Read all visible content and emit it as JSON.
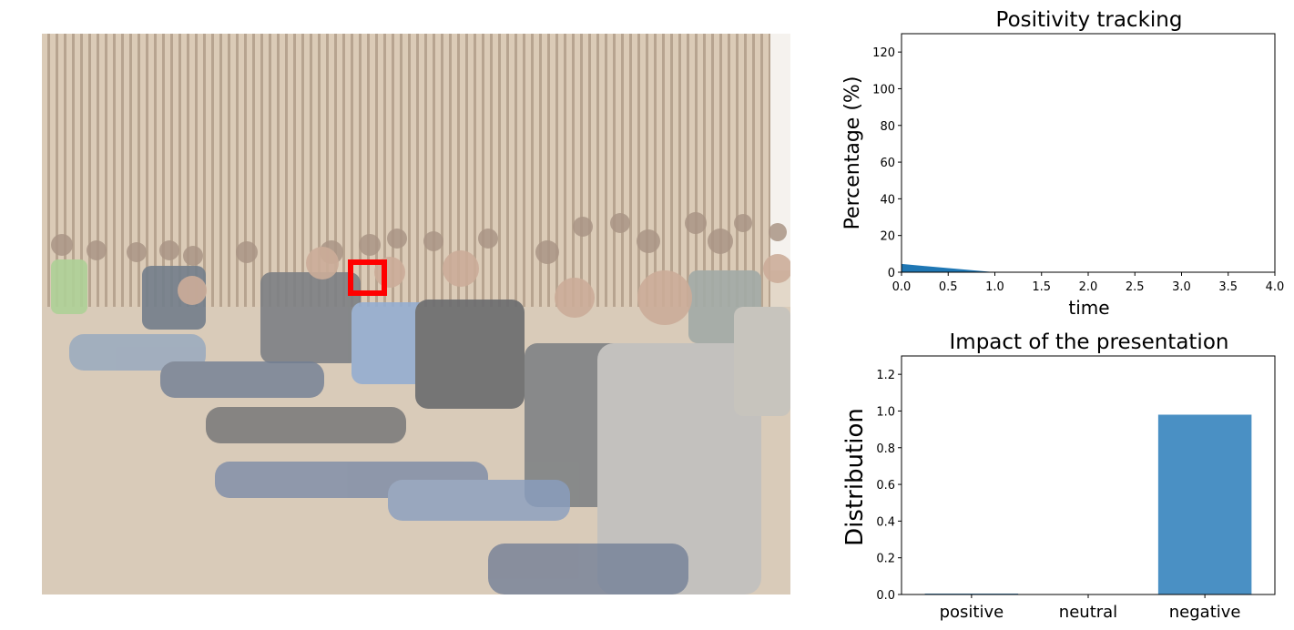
{
  "photo": {
    "description_icon": "audience-photo",
    "marker_color": "#ff0000"
  },
  "chart_data": [
    {
      "type": "area",
      "title": "Positivity tracking",
      "xlabel": "time",
      "ylabel": "Percentage (%)",
      "x": [
        0,
        1
      ],
      "y": [
        4.5,
        0
      ],
      "xlim": [
        0,
        4
      ],
      "ylim": [
        0,
        130
      ],
      "xticks": [
        "0.0",
        "0.5",
        "1.0",
        "1.5",
        "2.0",
        "2.5",
        "3.0",
        "3.5",
        "4.0"
      ],
      "yticks": [
        "0",
        "20",
        "40",
        "60",
        "80",
        "100",
        "120"
      ],
      "grid": false,
      "color": "#1f77b4"
    },
    {
      "type": "bar",
      "title": "Impact of the presentation",
      "xlabel": "",
      "ylabel": "Distribution",
      "categories": [
        "positive",
        "neutral",
        "negative"
      ],
      "values": [
        0.005,
        0.0,
        0.98
      ],
      "ylim": [
        0,
        1.3
      ],
      "yticks": [
        "0.0",
        "0.2",
        "0.4",
        "0.6",
        "0.8",
        "1.0",
        "1.2"
      ],
      "grid": false,
      "color": "#4a90c4"
    }
  ]
}
